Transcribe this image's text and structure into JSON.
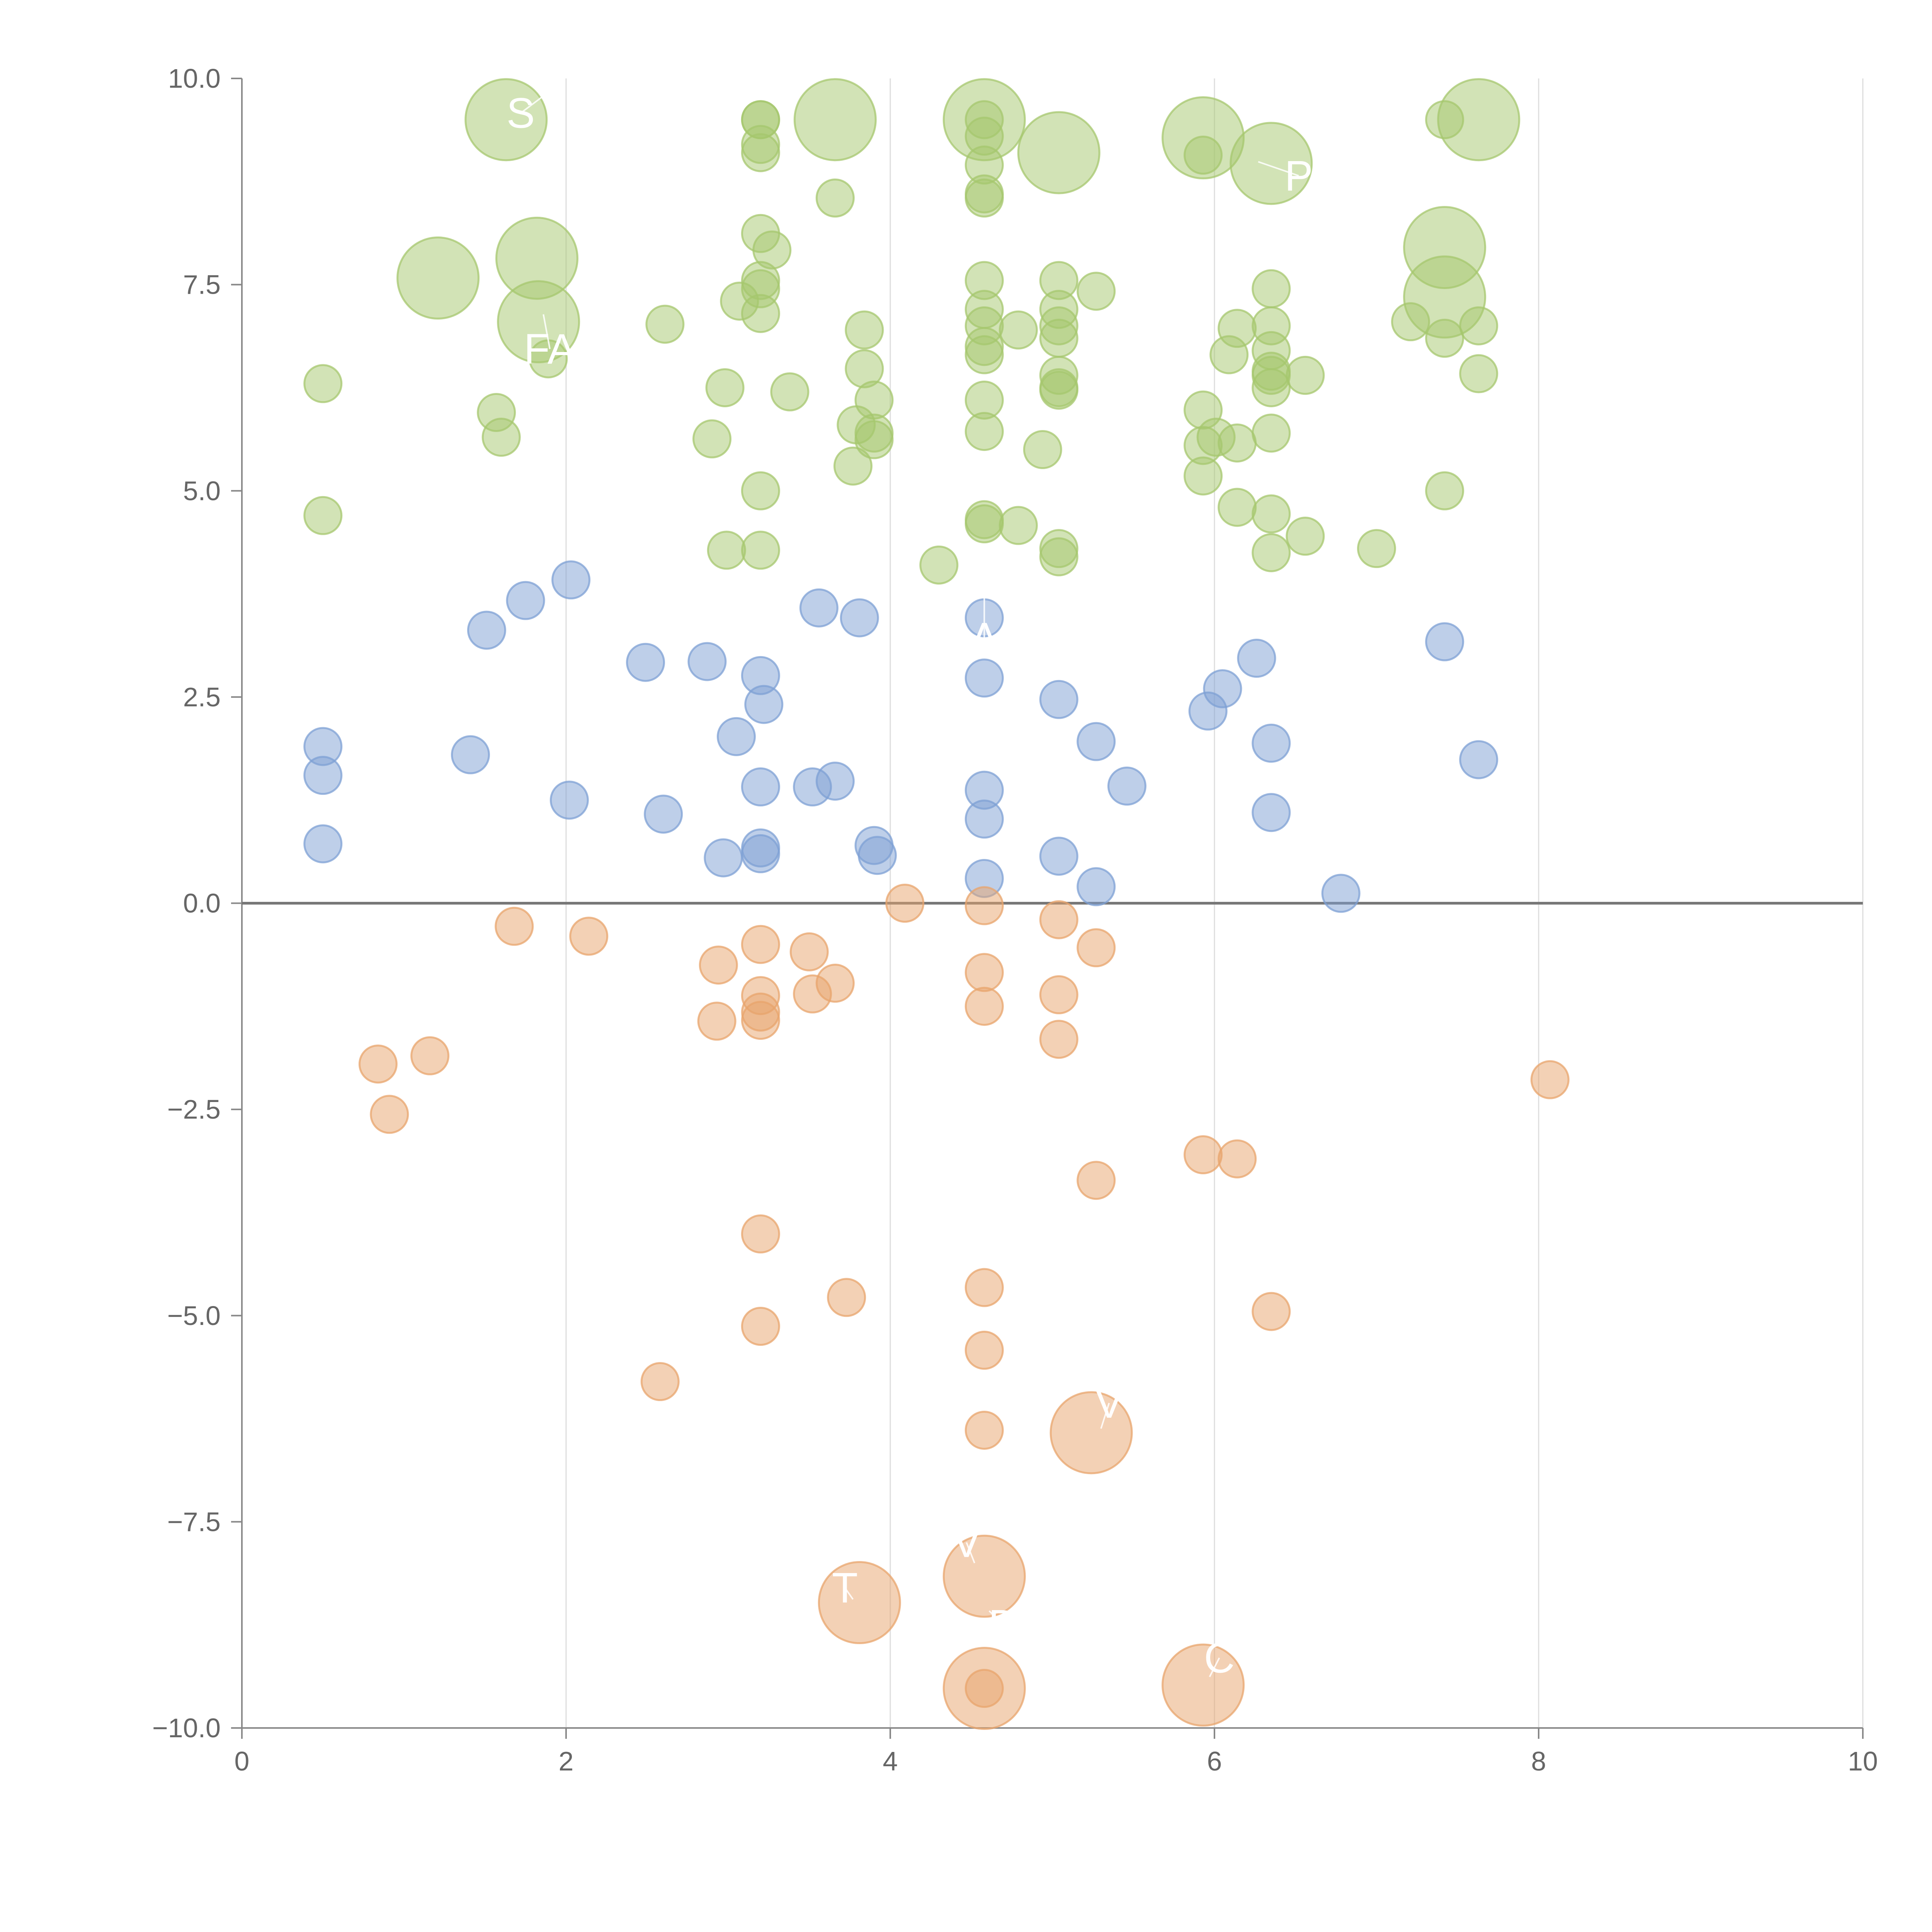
{
  "chart_data": {
    "type": "scatter",
    "title": "",
    "xlabel": "",
    "ylabel": "",
    "xlim": [
      0,
      10
    ],
    "ylim": [
      -10,
      10
    ],
    "x_ticks": [
      0,
      2,
      4,
      6,
      8,
      10
    ],
    "x_tick_labels": [
      "0",
      "2",
      "4",
      "6",
      "8",
      "10"
    ],
    "y_ticks": [
      10,
      7.5,
      5,
      2.5,
      0,
      -2.5,
      -5,
      -7.5,
      -10
    ],
    "y_tick_labels": [
      "10.0",
      "7.5",
      "5.0",
      "2.5",
      "0.0",
      "−2.5",
      "−5.0",
      "−7.5",
      "−10.0"
    ],
    "grid": {
      "vertical": true,
      "horizontal": false
    },
    "reference_line_y": 0,
    "legend": "none",
    "colors": {
      "high": "#a5c76d",
      "mid": "#7da0d4",
      "low": "#e8a46c",
      "background": "#ffffff",
      "axis": "#888888",
      "tick_text": "#666666"
    },
    "series": [
      {
        "color_key": "high",
        "points": [
          {
            "x": 1.63,
            "y": 9.5,
            "size": 2
          },
          {
            "x": 3.2,
            "y": 9.5,
            "size": 1
          },
          {
            "x": 3.2,
            "y": 9.5,
            "size": 1
          },
          {
            "x": 3.2,
            "y": 9.2,
            "size": 1
          },
          {
            "x": 3.2,
            "y": 9.1,
            "size": 1
          },
          {
            "x": 3.66,
            "y": 9.5,
            "size": 2
          },
          {
            "x": 4.58,
            "y": 9.5,
            "size": 2
          },
          {
            "x": 4.58,
            "y": 9.5,
            "size": 1
          },
          {
            "x": 4.58,
            "y": 9.3,
            "size": 1
          },
          {
            "x": 4.58,
            "y": 8.95,
            "size": 1
          },
          {
            "x": 4.58,
            "y": 8.6,
            "size": 1
          },
          {
            "x": 4.58,
            "y": 8.55,
            "size": 1
          },
          {
            "x": 5.04,
            "y": 9.1,
            "size": 2
          },
          {
            "x": 5.93,
            "y": 9.28,
            "size": 2
          },
          {
            "x": 5.93,
            "y": 9.07,
            "size": 1
          },
          {
            "x": 6.35,
            "y": 8.97,
            "size": 2
          },
          {
            "x": 7.42,
            "y": 9.5,
            "size": 1
          },
          {
            "x": 7.63,
            "y": 9.5,
            "size": 2
          },
          {
            "x": 3.66,
            "y": 8.55,
            "size": 1
          },
          {
            "x": 1.21,
            "y": 7.58,
            "size": 2
          },
          {
            "x": 1.82,
            "y": 7.82,
            "size": 2
          },
          {
            "x": 1.83,
            "y": 7.05,
            "size": 2
          },
          {
            "x": 1.89,
            "y": 6.6,
            "size": 1
          },
          {
            "x": 3.2,
            "y": 8.12,
            "size": 1
          },
          {
            "x": 3.27,
            "y": 7.92,
            "size": 1
          },
          {
            "x": 3.2,
            "y": 7.55,
            "size": 1
          },
          {
            "x": 3.2,
            "y": 7.45,
            "size": 1
          },
          {
            "x": 3.2,
            "y": 7.15,
            "size": 1
          },
          {
            "x": 3.07,
            "y": 7.3,
            "size": 1
          },
          {
            "x": 2.61,
            "y": 7.02,
            "size": 1
          },
          {
            "x": 4.58,
            "y": 7.55,
            "size": 1
          },
          {
            "x": 4.58,
            "y": 7.2,
            "size": 1
          },
          {
            "x": 4.58,
            "y": 7.0,
            "size": 1
          },
          {
            "x": 4.58,
            "y": 6.75,
            "size": 1
          },
          {
            "x": 4.58,
            "y": 6.65,
            "size": 1
          },
          {
            "x": 4.79,
            "y": 6.95,
            "size": 1
          },
          {
            "x": 5.04,
            "y": 7.55,
            "size": 1
          },
          {
            "x": 5.04,
            "y": 7.2,
            "size": 1
          },
          {
            "x": 5.04,
            "y": 7.0,
            "size": 1
          },
          {
            "x": 5.04,
            "y": 6.85,
            "size": 1
          },
          {
            "x": 5.27,
            "y": 7.42,
            "size": 1
          },
          {
            "x": 5.04,
            "y": 6.4,
            "size": 1
          },
          {
            "x": 5.04,
            "y": 6.25,
            "size": 1
          },
          {
            "x": 5.04,
            "y": 6.22,
            "size": 1
          },
          {
            "x": 7.42,
            "y": 7.95,
            "size": 2
          },
          {
            "x": 7.42,
            "y": 7.35,
            "size": 2
          },
          {
            "x": 7.21,
            "y": 7.05,
            "size": 1
          },
          {
            "x": 7.42,
            "y": 6.85,
            "size": 1
          },
          {
            "x": 7.63,
            "y": 7.0,
            "size": 1
          },
          {
            "x": 7.63,
            "y": 6.42,
            "size": 1
          },
          {
            "x": 6.35,
            "y": 7.45,
            "size": 1
          },
          {
            "x": 6.35,
            "y": 7.0,
            "size": 1
          },
          {
            "x": 6.35,
            "y": 6.7,
            "size": 1
          },
          {
            "x": 6.35,
            "y": 6.45,
            "size": 1
          },
          {
            "x": 6.35,
            "y": 6.4,
            "size": 1
          },
          {
            "x": 6.35,
            "y": 6.25,
            "size": 1
          },
          {
            "x": 6.56,
            "y": 6.4,
            "size": 1
          },
          {
            "x": 6.14,
            "y": 6.97,
            "size": 1
          },
          {
            "x": 6.09,
            "y": 6.65,
            "size": 1
          },
          {
            "x": 3.84,
            "y": 6.95,
            "size": 1
          },
          {
            "x": 3.84,
            "y": 6.48,
            "size": 1
          },
          {
            "x": 3.9,
            "y": 6.1,
            "size": 1
          },
          {
            "x": 3.79,
            "y": 5.8,
            "size": 1
          },
          {
            "x": 3.9,
            "y": 5.7,
            "size": 1
          },
          {
            "x": 3.9,
            "y": 5.62,
            "size": 1
          },
          {
            "x": 3.77,
            "y": 5.3,
            "size": 1
          },
          {
            "x": 0.5,
            "y": 6.3,
            "size": 1
          },
          {
            "x": 1.57,
            "y": 5.95,
            "size": 1
          },
          {
            "x": 1.6,
            "y": 5.65,
            "size": 1
          },
          {
            "x": 2.98,
            "y": 6.25,
            "size": 1
          },
          {
            "x": 3.38,
            "y": 6.2,
            "size": 1
          },
          {
            "x": 2.9,
            "y": 5.63,
            "size": 1
          },
          {
            "x": 4.58,
            "y": 6.1,
            "size": 1
          },
          {
            "x": 4.58,
            "y": 5.72,
            "size": 1
          },
          {
            "x": 4.94,
            "y": 5.5,
            "size": 1
          },
          {
            "x": 5.93,
            "y": 5.98,
            "size": 1
          },
          {
            "x": 5.93,
            "y": 5.55,
            "size": 1
          },
          {
            "x": 6.01,
            "y": 5.65,
            "size": 1
          },
          {
            "x": 6.14,
            "y": 5.58,
            "size": 1
          },
          {
            "x": 5.93,
            "y": 5.18,
            "size": 1
          },
          {
            "x": 6.35,
            "y": 5.7,
            "size": 1
          },
          {
            "x": 0.5,
            "y": 4.7,
            "size": 1
          },
          {
            "x": 3.2,
            "y": 5.0,
            "size": 1
          },
          {
            "x": 2.99,
            "y": 4.28,
            "size": 1
          },
          {
            "x": 3.2,
            "y": 4.28,
            "size": 1
          },
          {
            "x": 4.58,
            "y": 4.65,
            "size": 1
          },
          {
            "x": 4.58,
            "y": 4.6,
            "size": 1
          },
          {
            "x": 4.79,
            "y": 4.58,
            "size": 1
          },
          {
            "x": 4.3,
            "y": 4.1,
            "size": 1
          },
          {
            "x": 5.04,
            "y": 4.3,
            "size": 1
          },
          {
            "x": 5.04,
            "y": 4.2,
            "size": 1
          },
          {
            "x": 6.14,
            "y": 4.8,
            "size": 1
          },
          {
            "x": 6.35,
            "y": 4.72,
            "size": 1
          },
          {
            "x": 6.35,
            "y": 4.25,
            "size": 1
          },
          {
            "x": 6.56,
            "y": 4.45,
            "size": 1
          },
          {
            "x": 7.0,
            "y": 4.3,
            "size": 1
          },
          {
            "x": 7.42,
            "y": 5.0,
            "size": 1
          }
        ]
      },
      {
        "color_key": "mid",
        "points": [
          {
            "x": 2.03,
            "y": 3.92,
            "size": 1
          },
          {
            "x": 1.75,
            "y": 3.67,
            "size": 1
          },
          {
            "x": 1.51,
            "y": 3.31,
            "size": 1
          },
          {
            "x": 3.56,
            "y": 3.58,
            "size": 1
          },
          {
            "x": 3.81,
            "y": 3.46,
            "size": 1
          },
          {
            "x": 4.58,
            "y": 3.46,
            "size": 1
          },
          {
            "x": 4.58,
            "y": 2.73,
            "size": 1
          },
          {
            "x": 2.49,
            "y": 2.92,
            "size": 1
          },
          {
            "x": 2.87,
            "y": 2.93,
            "size": 1
          },
          {
            "x": 3.2,
            "y": 2.76,
            "size": 1
          },
          {
            "x": 3.22,
            "y": 2.41,
            "size": 1
          },
          {
            "x": 3.05,
            "y": 2.02,
            "size": 1
          },
          {
            "x": 0.5,
            "y": 1.9,
            "size": 1
          },
          {
            "x": 0.5,
            "y": 1.55,
            "size": 1
          },
          {
            "x": 1.41,
            "y": 1.8,
            "size": 1
          },
          {
            "x": 0.5,
            "y": 0.72,
            "size": 1
          },
          {
            "x": 2.02,
            "y": 1.25,
            "size": 1
          },
          {
            "x": 2.6,
            "y": 1.08,
            "size": 1
          },
          {
            "x": 3.2,
            "y": 1.41,
            "size": 1
          },
          {
            "x": 3.52,
            "y": 1.41,
            "size": 1
          },
          {
            "x": 3.66,
            "y": 1.48,
            "size": 1
          },
          {
            "x": 2.97,
            "y": 0.55,
            "size": 1
          },
          {
            "x": 3.2,
            "y": 0.67,
            "size": 1
          },
          {
            "x": 3.2,
            "y": 0.6,
            "size": 1
          },
          {
            "x": 3.9,
            "y": 0.7,
            "size": 1
          },
          {
            "x": 3.92,
            "y": 0.58,
            "size": 1
          },
          {
            "x": 4.58,
            "y": 1.37,
            "size": 1
          },
          {
            "x": 4.58,
            "y": 1.02,
            "size": 1
          },
          {
            "x": 4.58,
            "y": 0.3,
            "size": 1
          },
          {
            "x": 5.04,
            "y": 2.47,
            "size": 1
          },
          {
            "x": 5.27,
            "y": 1.96,
            "size": 1
          },
          {
            "x": 5.46,
            "y": 1.42,
            "size": 1
          },
          {
            "x": 5.04,
            "y": 0.57,
            "size": 1
          },
          {
            "x": 5.27,
            "y": 0.2,
            "size": 1
          },
          {
            "x": 5.96,
            "y": 2.33,
            "size": 1
          },
          {
            "x": 6.05,
            "y": 2.6,
            "size": 1
          },
          {
            "x": 6.26,
            "y": 2.97,
            "size": 1
          },
          {
            "x": 6.35,
            "y": 1.94,
            "size": 1
          },
          {
            "x": 6.35,
            "y": 1.1,
            "size": 1
          },
          {
            "x": 6.78,
            "y": 0.12,
            "size": 1
          },
          {
            "x": 7.42,
            "y": 3.17,
            "size": 1
          },
          {
            "x": 7.63,
            "y": 1.74,
            "size": 1
          }
        ]
      },
      {
        "color_key": "low",
        "points": [
          {
            "x": 1.68,
            "y": -0.28,
            "size": 1
          },
          {
            "x": 2.14,
            "y": -0.4,
            "size": 1
          },
          {
            "x": 4.09,
            "y": 0.0,
            "size": 1
          },
          {
            "x": 4.58,
            "y": -0.03,
            "size": 1
          },
          {
            "x": 2.94,
            "y": -0.75,
            "size": 1
          },
          {
            "x": 3.2,
            "y": -0.5,
            "size": 1
          },
          {
            "x": 3.2,
            "y": -1.12,
            "size": 1
          },
          {
            "x": 3.2,
            "y": -1.32,
            "size": 1
          },
          {
            "x": 3.2,
            "y": -1.42,
            "size": 1
          },
          {
            "x": 2.93,
            "y": -1.43,
            "size": 1
          },
          {
            "x": 3.5,
            "y": -0.59,
            "size": 1
          },
          {
            "x": 3.66,
            "y": -0.97,
            "size": 1
          },
          {
            "x": 3.52,
            "y": -1.1,
            "size": 1
          },
          {
            "x": 4.58,
            "y": -0.84,
            "size": 1
          },
          {
            "x": 4.58,
            "y": -1.25,
            "size": 1
          },
          {
            "x": 5.04,
            "y": -0.2,
            "size": 1
          },
          {
            "x": 5.27,
            "y": -0.54,
            "size": 1
          },
          {
            "x": 5.04,
            "y": -1.11,
            "size": 1
          },
          {
            "x": 5.04,
            "y": -1.65,
            "size": 1
          },
          {
            "x": 0.84,
            "y": -1.95,
            "size": 1
          },
          {
            "x": 1.16,
            "y": -1.85,
            "size": 1
          },
          {
            "x": 0.91,
            "y": -2.56,
            "size": 1
          },
          {
            "x": 8.07,
            "y": -2.14,
            "size": 1
          },
          {
            "x": 5.93,
            "y": -3.05,
            "size": 1
          },
          {
            "x": 6.14,
            "y": -3.1,
            "size": 1
          },
          {
            "x": 5.27,
            "y": -3.36,
            "size": 1
          },
          {
            "x": 3.2,
            "y": -4.01,
            "size": 1
          },
          {
            "x": 3.73,
            "y": -4.78,
            "size": 1
          },
          {
            "x": 4.58,
            "y": -4.66,
            "size": 1
          },
          {
            "x": 6.35,
            "y": -4.95,
            "size": 1
          },
          {
            "x": 3.2,
            "y": -5.13,
            "size": 1
          },
          {
            "x": 2.58,
            "y": -5.8,
            "size": 1
          },
          {
            "x": 4.58,
            "y": -5.42,
            "size": 1
          },
          {
            "x": 4.58,
            "y": -6.39,
            "size": 1
          },
          {
            "x": 5.24,
            "y": -6.42,
            "size": 2
          },
          {
            "x": 4.58,
            "y": -8.16,
            "size": 2
          },
          {
            "x": 3.81,
            "y": -8.48,
            "size": 2
          },
          {
            "x": 4.58,
            "y": -9.52,
            "size": 2
          },
          {
            "x": 4.58,
            "y": -9.52,
            "size": 1
          },
          {
            "x": 5.93,
            "y": -9.48,
            "size": 2
          }
        ]
      }
    ],
    "annotations": [
      {
        "text": "S",
        "x": 1.72,
        "y": 9.58,
        "from": [
          1.97,
          9.95
        ]
      },
      {
        "text": "P",
        "x": 6.52,
        "y": 8.82,
        "from": [
          6.27,
          8.99
        ]
      },
      {
        "text": "FA",
        "x": 1.9,
        "y": 6.72,
        "from": [
          1.86,
          7.14
        ]
      },
      {
        "text": "A",
        "x": 4.58,
        "y": 3.22,
        "from": [
          4.58,
          3.9
        ]
      },
      {
        "text": "V",
        "x": 5.35,
        "y": -6.06,
        "from": [
          5.3,
          -6.37
        ]
      },
      {
        "text": "V",
        "x": 4.47,
        "y": -7.75,
        "from": [
          4.52,
          -8.0
        ]
      },
      {
        "text": "T",
        "x": 3.72,
        "y": -8.3,
        "from": [
          3.77,
          -8.44
        ]
      },
      {
        "text": "D",
        "x": 4.7,
        "y": -8.75,
        "from": [
          4.61,
          -8.58
        ]
      },
      {
        "text": "C",
        "x": 6.03,
        "y": -9.15,
        "from": [
          5.97,
          -9.38
        ]
      }
    ]
  }
}
